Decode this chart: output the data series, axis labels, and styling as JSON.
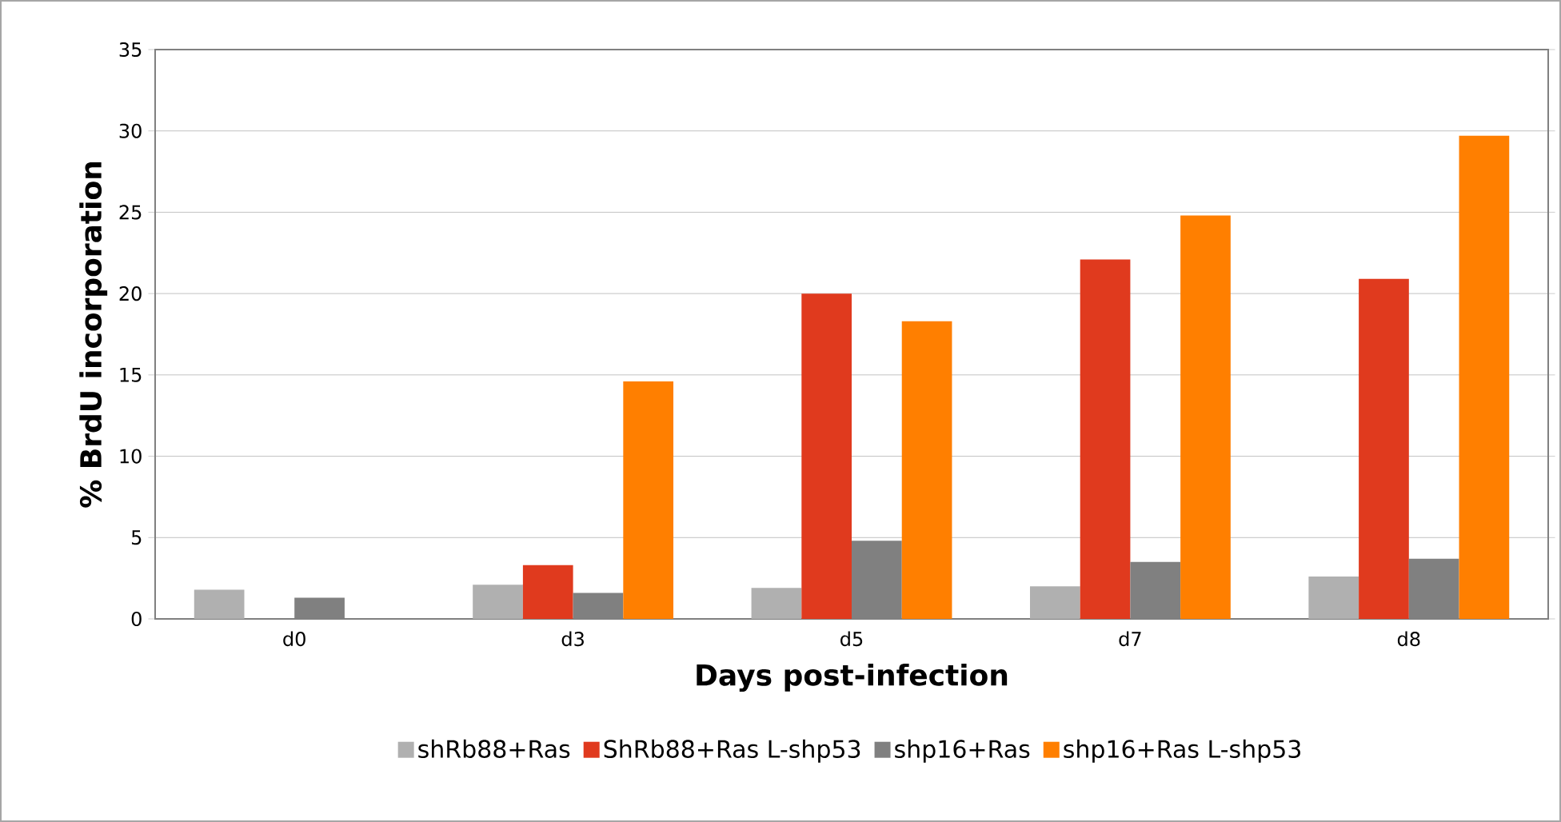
{
  "chart_data": {
    "type": "bar",
    "xlabel": "Days post-infection",
    "ylabel": "% BrdU incorporation",
    "categories": [
      "d0",
      "d3",
      "d5",
      "d7",
      "d8"
    ],
    "series": [
      {
        "name": "shRb88+Ras",
        "color": "#b0b0b0",
        "values": [
          1.8,
          2.1,
          1.9,
          2.0,
          2.6
        ]
      },
      {
        "name": "ShRb88+Ras L-shp53",
        "color": "#e03a1e",
        "values": [
          null,
          3.3,
          20.0,
          22.1,
          20.9
        ]
      },
      {
        "name": "shp16+Ras",
        "color": "#808080",
        "values": [
          1.3,
          1.6,
          4.8,
          3.5,
          3.7
        ]
      },
      {
        "name": "shp16+Ras L-shp53",
        "color": "#ff7f00",
        "values": [
          null,
          14.6,
          18.3,
          24.8,
          29.7
        ]
      }
    ],
    "ylim": [
      0,
      35
    ],
    "yticks": [
      0,
      5,
      10,
      15,
      20,
      25,
      30,
      35
    ],
    "grid": "y",
    "legend": "bottom"
  }
}
